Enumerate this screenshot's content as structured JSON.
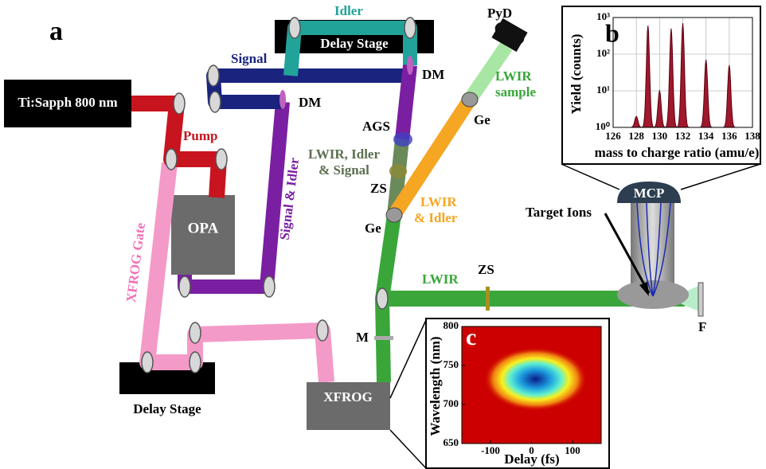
{
  "panel_labels": {
    "a": "a",
    "b": "b",
    "c": "c"
  },
  "diagram": {
    "source": "Ti:Sapph 800 nm",
    "pump": "Pump",
    "opa": "OPA",
    "xfrog_gate": "XFROG Gate",
    "signal_idler": "Signal & Idler",
    "signal": "Signal",
    "idler": "Idler",
    "delay_stage_top": "Delay Stage",
    "dm_1": "DM",
    "dm_2": "DM",
    "pyd": "PyD",
    "lwir_sample": [
      "LWIR",
      "sample"
    ],
    "ags": "AGS",
    "lwir_idler_signal": [
      "LWIR, Idler",
      "& Signal"
    ],
    "zs_1": "ZS",
    "ge_1": "Ge",
    "lwir_idler": [
      "LWIR",
      "& Idler"
    ],
    "ge_2": "Ge",
    "lwir": "LWIR",
    "zs_2": "ZS",
    "m": "M",
    "xfrog": "XFROG",
    "delay_stage_bottom": "Delay Stage",
    "target_ions": "Target Ions",
    "mcp": "MCP",
    "f": "F"
  },
  "chart_data": [
    {
      "type": "area",
      "xlabel": "mass to charge ratio (amu/e)",
      "ylabel": "Yield (counts)",
      "xlim": [
        126,
        138
      ],
      "xticks": [
        126,
        128,
        130,
        132,
        134,
        136,
        138
      ],
      "ylim": [
        1,
        1000
      ],
      "log_y": true,
      "yticks": [
        {
          "value": 1,
          "label": "10⁰"
        },
        {
          "value": 10,
          "label": "10¹"
        },
        {
          "value": 100,
          "label": "10²"
        },
        {
          "value": 1000,
          "label": "10³"
        }
      ],
      "grid": true,
      "color": "#a0182c",
      "x": [
        128,
        129,
        130,
        131,
        132,
        134,
        136
      ],
      "values": [
        2,
        600,
        10,
        500,
        700,
        70,
        50
      ]
    },
    {
      "type": "heatmap",
      "xlabel": "Delay (fs)",
      "ylabel": "Wavelength (nm)",
      "xlim": [
        -170,
        170
      ],
      "xticks": [
        -100,
        0,
        100
      ],
      "ylim": [
        650,
        800
      ],
      "yticks": [
        650,
        700,
        750,
        800
      ]
    }
  ]
}
